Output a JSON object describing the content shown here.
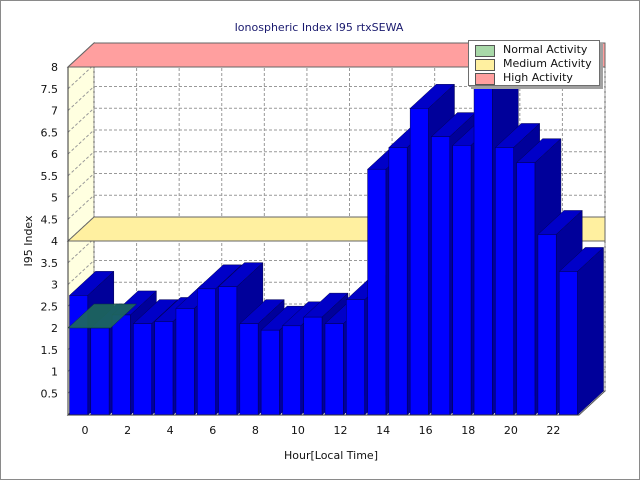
{
  "chart_data": {
    "type": "bar",
    "title": "Ionospheric Index I95 rtxSEWA",
    "xlabel": "Hour[Local Time]",
    "ylabel": "I95 Index",
    "x_tick_labels": [
      "0",
      "2",
      "4",
      "6",
      "8",
      "10",
      "12",
      "14",
      "16",
      "18",
      "20",
      "22"
    ],
    "y_tick_labels": [
      "0.5",
      "1",
      "1.5",
      "2",
      "2.5",
      "3",
      "3.5",
      "4",
      "4.5",
      "5",
      "5.5",
      "6",
      "6.5",
      "7",
      "7.5",
      "8"
    ],
    "ylim": [
      0,
      8
    ],
    "grid": true,
    "three_d": true,
    "hours": [
      0,
      1,
      2,
      3,
      4,
      5,
      6,
      7,
      8,
      9,
      10,
      11,
      12,
      13,
      14,
      15,
      16,
      17,
      18,
      19,
      20,
      21,
      22,
      23
    ],
    "values": [
      2.75,
      2.0,
      2.3,
      2.1,
      2.15,
      2.45,
      2.9,
      2.95,
      2.1,
      1.95,
      2.05,
      2.25,
      2.1,
      2.65,
      5.65,
      6.15,
      7.05,
      6.4,
      6.2,
      7.6,
      6.15,
      5.8,
      4.15,
      3.3
    ],
    "bar_color": "#0000ff",
    "bar_side_color": "#00009a",
    "bar_top_color": "#0000c8",
    "legend": {
      "placement": "top-right",
      "items": [
        {
          "label": "Normal Activity",
          "color": "#a8d8a8"
        },
        {
          "label": "Medium Activity",
          "color": "#fff0a0"
        },
        {
          "label": "High Activity",
          "color": "#ff9f9f"
        }
      ]
    },
    "bands": [
      {
        "name": "Normal Activity",
        "level": 2.0,
        "color": "#1f6a5a"
      },
      {
        "name": "Medium Activity",
        "level": 4.0,
        "color": "#fff0a0"
      },
      {
        "name": "High Activity",
        "level": 8.0,
        "color": "#ff9f9f"
      }
    ],
    "back_wall_color": "#ffffe0"
  }
}
